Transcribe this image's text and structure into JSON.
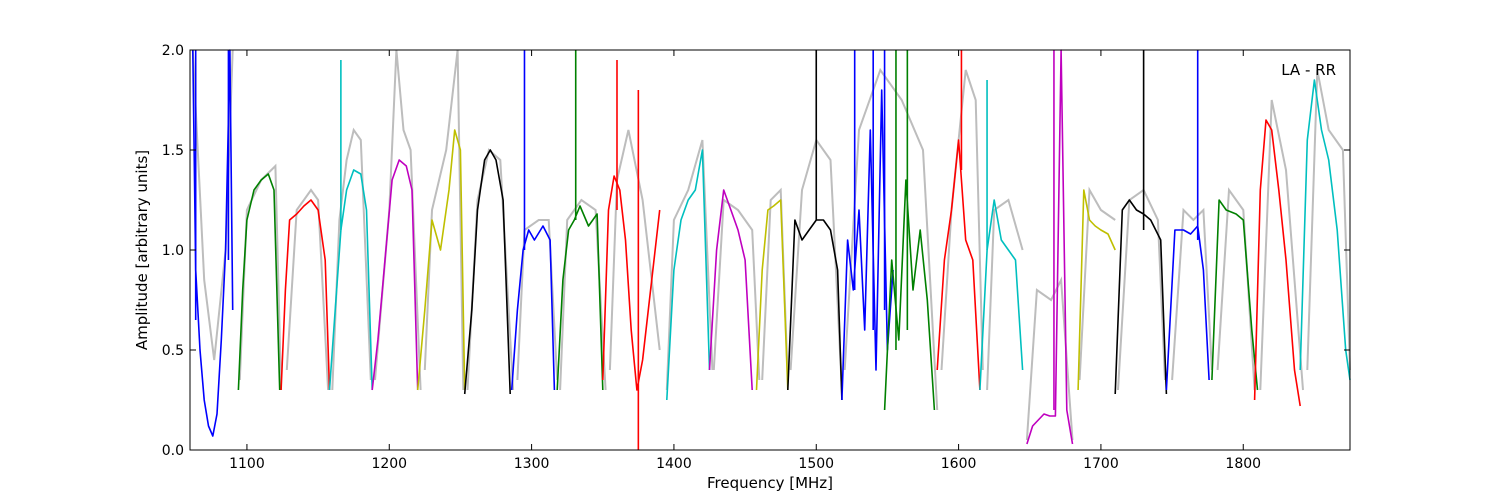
{
  "chart_data": {
    "type": "line",
    "title": "",
    "xlabel": "Frequency [MHz]",
    "ylabel": "Amplitude [arbitrary units]",
    "annotation": "LA - RR",
    "xlim": [
      1060,
      1875
    ],
    "ylim": [
      0.0,
      2.0
    ],
    "x_ticks": [
      1100,
      1200,
      1300,
      1400,
      1500,
      1600,
      1700,
      1800
    ],
    "x_tick_labels": [
      "1100",
      "1200",
      "1300",
      "1400",
      "1500",
      "1600",
      "1700",
      "1800"
    ],
    "y_ticks": [
      0.0,
      0.5,
      1.0,
      1.5,
      2.0
    ],
    "y_tick_labels": [
      "0.0",
      "0.5",
      "1.0",
      "1.5",
      "2.0"
    ],
    "grid": false,
    "gray_color": "#bdbdbd",
    "gray_segments": [
      {
        "x": [
          1062,
          1070,
          1077,
          1085,
          1090
        ],
        "y": [
          2.0,
          0.85,
          0.45,
          1.0,
          2.0
        ]
      },
      {
        "x": [
          1095,
          1100,
          1110,
          1120,
          1124
        ],
        "y": [
          0.35,
          1.2,
          1.35,
          1.42,
          0.3
        ]
      },
      {
        "x": [
          1128,
          1135,
          1140,
          1145,
          1150,
          1157
        ],
        "y": [
          0.4,
          1.2,
          1.25,
          1.3,
          1.25,
          0.3
        ]
      },
      {
        "x": [
          1160,
          1165,
          1170,
          1175,
          1180,
          1187
        ],
        "y": [
          0.3,
          1.15,
          1.45,
          1.6,
          1.55,
          0.35
        ]
      },
      {
        "x": [
          1190,
          1200,
          1205,
          1210,
          1215,
          1222
        ],
        "y": [
          0.35,
          1.2,
          2.0,
          1.6,
          1.5,
          0.3
        ]
      },
      {
        "x": [
          1225,
          1230,
          1240,
          1248,
          1252
        ],
        "y": [
          0.4,
          1.2,
          1.5,
          2.0,
          0.3
        ]
      },
      {
        "x": [
          1255,
          1262,
          1270,
          1278,
          1287
        ],
        "y": [
          0.3,
          1.25,
          1.5,
          1.45,
          0.3
        ]
      },
      {
        "x": [
          1290,
          1295,
          1305,
          1312,
          1318
        ],
        "y": [
          0.35,
          1.1,
          1.15,
          1.15,
          0.35
        ]
      },
      {
        "x": [
          1320,
          1325,
          1335,
          1345,
          1352
        ],
        "y": [
          0.3,
          1.15,
          1.25,
          1.2,
          0.3
        ]
      },
      {
        "x": [
          1355,
          1360,
          1368,
          1378,
          1390
        ],
        "y": [
          0.4,
          1.35,
          1.6,
          1.25,
          0.5
        ]
      },
      {
        "x": [
          1395,
          1400,
          1410,
          1420,
          1427
        ],
        "y": [
          0.3,
          1.15,
          1.3,
          1.55,
          0.4
        ]
      },
      {
        "x": [
          1428,
          1435,
          1445,
          1455,
          1460
        ],
        "y": [
          0.4,
          1.25,
          1.2,
          1.1,
          0.35
        ]
      },
      {
        "x": [
          1462,
          1468,
          1475,
          1480
        ],
        "y": [
          0.35,
          1.25,
          1.3,
          0.35
        ]
      },
      {
        "x": [
          1482,
          1490,
          1500,
          1510,
          1518
        ],
        "y": [
          0.4,
          1.3,
          1.55,
          1.45,
          0.3
        ]
      },
      {
        "x": [
          1520,
          1530,
          1545,
          1560,
          1575,
          1585
        ],
        "y": [
          0.4,
          1.6,
          1.9,
          1.75,
          1.5,
          0.2
        ]
      },
      {
        "x": [
          1588,
          1595,
          1605,
          1612,
          1617
        ],
        "y": [
          0.4,
          1.2,
          1.9,
          1.75,
          0.4
        ]
      },
      {
        "x": [
          1620,
          1625,
          1635,
          1645
        ],
        "y": [
          0.3,
          1.2,
          1.25,
          1.0
        ]
      },
      {
        "x": [
          1648,
          1655,
          1665,
          1672,
          1680
        ],
        "y": [
          0.05,
          0.8,
          0.75,
          0.85,
          0.05
        ]
      },
      {
        "x": [
          1685,
          1692,
          1700,
          1710
        ],
        "y": [
          0.35,
          1.3,
          1.2,
          1.15
        ]
      },
      {
        "x": [
          1712,
          1720,
          1730,
          1740,
          1745
        ],
        "y": [
          0.3,
          1.25,
          1.3,
          1.15,
          0.35
        ]
      },
      {
        "x": [
          1750,
          1758,
          1765,
          1772,
          1778
        ],
        "y": [
          0.35,
          1.2,
          1.15,
          1.2,
          0.4
        ]
      },
      {
        "x": [
          1782,
          1790,
          1800,
          1808
        ],
        "y": [
          0.4,
          1.3,
          1.2,
          0.3
        ]
      },
      {
        "x": [
          1812,
          1820,
          1830,
          1842
        ],
        "y": [
          0.3,
          1.75,
          1.4,
          0.3
        ]
      },
      {
        "x": [
          1845,
          1852,
          1860,
          1870,
          1875
        ],
        "y": [
          0.4,
          1.9,
          1.6,
          1.5,
          0.4
        ]
      }
    ],
    "segments": [
      {
        "color": "#0000ff",
        "x": [
          1062,
          1064,
          1067,
          1070,
          1073,
          1076,
          1079,
          1082,
          1085,
          1088,
          1090
        ],
        "y": [
          2.0,
          0.9,
          0.5,
          0.25,
          0.12,
          0.07,
          0.18,
          0.55,
          1.0,
          2.0,
          0.7
        ]
      },
      {
        "color": "#008000",
        "x": [
          1094,
          1097,
          1100,
          1105,
          1110,
          1115,
          1119,
          1123
        ],
        "y": [
          0.3,
          0.8,
          1.15,
          1.3,
          1.35,
          1.38,
          1.3,
          0.3
        ]
      },
      {
        "color": "#ff0000",
        "x": [
          1124,
          1127,
          1130,
          1135,
          1140,
          1145,
          1150,
          1155,
          1158
        ],
        "y": [
          0.3,
          0.8,
          1.15,
          1.18,
          1.22,
          1.25,
          1.2,
          0.95,
          0.3
        ]
      },
      {
        "color": "#00bfbf",
        "x": [
          1158,
          1162,
          1166,
          1170,
          1175,
          1180,
          1184,
          1188
        ],
        "y": [
          0.3,
          0.7,
          1.1,
          1.3,
          1.4,
          1.38,
          1.2,
          0.3
        ]
      },
      {
        "color": "#bf00bf",
        "x": [
          1188,
          1192,
          1197,
          1202,
          1207,
          1212,
          1216,
          1220
        ],
        "y": [
          0.3,
          0.55,
          0.95,
          1.35,
          1.45,
          1.42,
          1.3,
          0.3
        ]
      },
      {
        "color": "#bfbf00",
        "x": [
          1220,
          1225,
          1230,
          1236,
          1242,
          1246,
          1250,
          1253
        ],
        "y": [
          0.3,
          0.7,
          1.15,
          1.0,
          1.3,
          1.6,
          1.5,
          0.3
        ]
      },
      {
        "color": "#000000",
        "x": [
          1253,
          1258,
          1262,
          1267,
          1271,
          1275,
          1280,
          1285
        ],
        "y": [
          0.28,
          0.7,
          1.2,
          1.45,
          1.5,
          1.45,
          1.25,
          0.28
        ]
      },
      {
        "color": "#0000ff",
        "x": [
          1286,
          1290,
          1294,
          1298,
          1302,
          1308,
          1313,
          1316
        ],
        "y": [
          0.3,
          0.7,
          1.0,
          1.1,
          1.05,
          1.12,
          1.05,
          0.3
        ]
      },
      {
        "color": "#008000",
        "x": [
          1318,
          1322,
          1326,
          1330,
          1334,
          1340,
          1346,
          1350
        ],
        "y": [
          0.3,
          0.85,
          1.1,
          1.15,
          1.22,
          1.12,
          1.18,
          0.3
        ]
      },
      {
        "color": "#ff0000",
        "x": [
          1350,
          1354,
          1358,
          1362,
          1366,
          1370,
          1374,
          1378,
          1382,
          1386,
          1390
        ],
        "y": [
          0.35,
          1.2,
          1.37,
          1.3,
          1.05,
          0.6,
          0.3,
          0.45,
          0.7,
          0.95,
          1.2
        ]
      },
      {
        "color": "#00bfbf",
        "x": [
          1395,
          1400,
          1405,
          1410,
          1415,
          1420,
          1425
        ],
        "y": [
          0.25,
          0.9,
          1.15,
          1.25,
          1.3,
          1.5,
          0.4
        ]
      },
      {
        "color": "#bf00bf",
        "x": [
          1425,
          1430,
          1435,
          1440,
          1445,
          1450,
          1455
        ],
        "y": [
          0.4,
          1.0,
          1.3,
          1.2,
          1.1,
          0.95,
          0.3
        ]
      },
      {
        "color": "#bfbf00",
        "x": [
          1458,
          1462,
          1466,
          1470,
          1475,
          1480
        ],
        "y": [
          0.3,
          0.9,
          1.2,
          1.22,
          1.25,
          0.3
        ]
      },
      {
        "color": "#000000",
        "x": [
          1480,
          1485,
          1490,
          1495,
          1500,
          1505,
          1510,
          1515,
          1518
        ],
        "y": [
          0.3,
          1.15,
          1.05,
          1.1,
          1.15,
          1.15,
          1.1,
          0.9,
          0.25
        ]
      },
      {
        "color": "#0000ff",
        "x": [
          1518,
          1522,
          1526,
          1530,
          1534,
          1538,
          1542,
          1546,
          1550,
          1554
        ],
        "y": [
          0.25,
          1.05,
          0.8,
          1.2,
          0.6,
          1.6,
          0.4,
          1.8,
          0.5,
          0.9
        ]
      },
      {
        "color": "#008000",
        "x": [
          1548,
          1553,
          1558,
          1563,
          1568,
          1573,
          1578,
          1583
        ],
        "y": [
          0.2,
          0.95,
          0.55,
          1.35,
          0.8,
          1.1,
          0.75,
          0.2
        ]
      },
      {
        "color": "#ff0000",
        "x": [
          1585,
          1590,
          1595,
          1600,
          1605,
          1610,
          1615
        ],
        "y": [
          0.4,
          0.95,
          1.2,
          1.55,
          1.05,
          0.95,
          0.3
        ]
      },
      {
        "color": "#00bfbf",
        "x": [
          1615,
          1620,
          1625,
          1630,
          1635,
          1640,
          1645
        ],
        "y": [
          0.3,
          1.0,
          1.25,
          1.05,
          1.0,
          0.95,
          0.4
        ]
      },
      {
        "color": "#bf00bf",
        "x": [
          1648,
          1652,
          1656,
          1660,
          1664,
          1668,
          1672,
          1676,
          1680
        ],
        "y": [
          0.03,
          0.12,
          0.15,
          0.18,
          0.17,
          0.17,
          2.0,
          0.2,
          0.03
        ]
      },
      {
        "color": "#bfbf00",
        "x": [
          1684,
          1688,
          1692,
          1696,
          1700,
          1705,
          1710
        ],
        "y": [
          0.3,
          1.3,
          1.15,
          1.12,
          1.1,
          1.08,
          1.0
        ]
      },
      {
        "color": "#000000",
        "x": [
          1710,
          1715,
          1720,
          1725,
          1730,
          1735,
          1742,
          1746
        ],
        "y": [
          0.28,
          1.2,
          1.25,
          1.2,
          1.18,
          1.15,
          1.05,
          0.28
        ]
      },
      {
        "color": "#0000ff",
        "x": [
          1746,
          1752,
          1758,
          1763,
          1768,
          1772,
          1776
        ],
        "y": [
          0.3,
          1.1,
          1.1,
          1.08,
          1.12,
          0.9,
          0.35
        ]
      },
      {
        "color": "#008000",
        "x": [
          1778,
          1783,
          1788,
          1795,
          1800,
          1806,
          1810
        ],
        "y": [
          0.35,
          1.25,
          1.2,
          1.18,
          1.15,
          0.6,
          0.3
        ]
      },
      {
        "color": "#ff0000",
        "x": [
          1808,
          1812,
          1816,
          1820,
          1825,
          1830,
          1836,
          1840
        ],
        "y": [
          0.25,
          1.3,
          1.65,
          1.6,
          1.3,
          0.95,
          0.4,
          0.22
        ]
      },
      {
        "color": "#00bfbf",
        "x": [
          1840,
          1845,
          1850,
          1855,
          1860,
          1866,
          1872,
          1875
        ],
        "y": [
          0.4,
          1.55,
          1.85,
          1.6,
          1.45,
          1.1,
          0.5,
          0.35
        ]
      }
    ],
    "spikes": [
      {
        "color": "#0000ff",
        "x": 1064,
        "y0": 0.65,
        "y1": 2.0
      },
      {
        "color": "#0000ff",
        "x": 1087,
        "y0": 0.95,
        "y1": 2.0
      },
      {
        "color": "#00bfbf",
        "x": 1166,
        "y0": 1.1,
        "y1": 1.95
      },
      {
        "color": "#0000ff",
        "x": 1295,
        "y0": 1.0,
        "y1": 2.0
      },
      {
        "color": "#008000",
        "x": 1331,
        "y0": 1.15,
        "y1": 2.0
      },
      {
        "color": "#ff0000",
        "x": 1360,
        "y0": 1.2,
        "y1": 1.95
      },
      {
        "color": "#ff0000",
        "x": 1375,
        "y0": 0.0,
        "y1": 1.8
      },
      {
        "color": "#000000",
        "x": 1500,
        "y0": 1.15,
        "y1": 2.0
      },
      {
        "color": "#0000ff",
        "x": 1527,
        "y0": 0.8,
        "y1": 2.0
      },
      {
        "color": "#0000ff",
        "x": 1540,
        "y0": 0.6,
        "y1": 2.0
      },
      {
        "color": "#0000ff",
        "x": 1548,
        "y0": 0.7,
        "y1": 2.0
      },
      {
        "color": "#008000",
        "x": 1556,
        "y0": 0.5,
        "y1": 2.0
      },
      {
        "color": "#008000",
        "x": 1564,
        "y0": 0.6,
        "y1": 2.0
      },
      {
        "color": "#ff0000",
        "x": 1602,
        "y0": 1.4,
        "y1": 2.0
      },
      {
        "color": "#00bfbf",
        "x": 1620,
        "y0": 1.0,
        "y1": 1.85
      },
      {
        "color": "#bf00bf",
        "x": 1667,
        "y0": 0.2,
        "y1": 2.0
      },
      {
        "color": "#000000",
        "x": 1730,
        "y0": 1.1,
        "y1": 2.0
      },
      {
        "color": "#0000ff",
        "x": 1768,
        "y0": 1.05,
        "y1": 2.0
      }
    ]
  }
}
